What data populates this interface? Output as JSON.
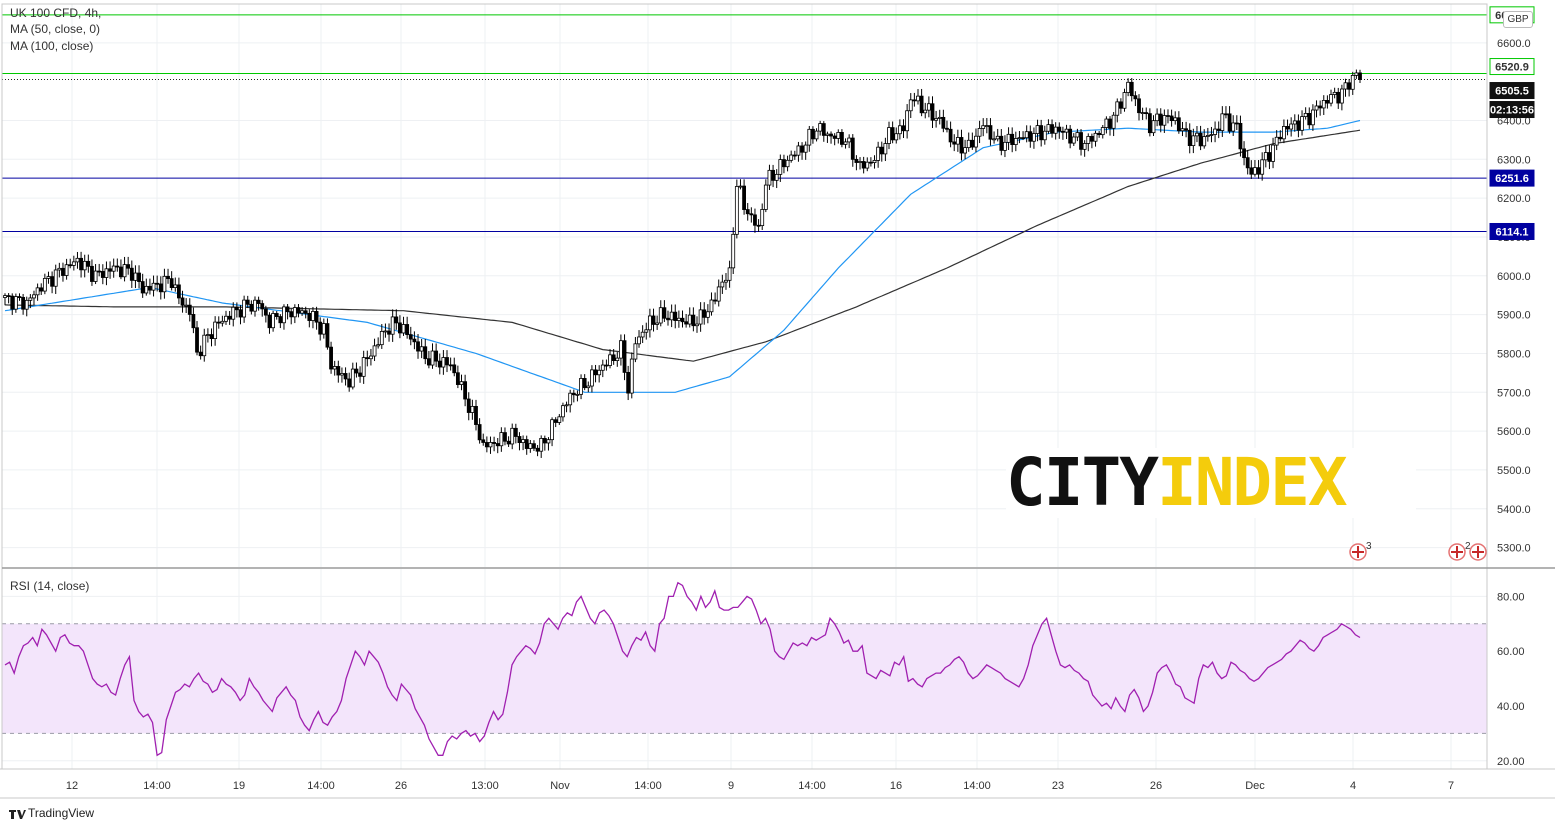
{
  "header": {
    "symbol": "UK 100 CFD, 4h,",
    "ma1_label": "MA (50, close, 0)",
    "ma2_label": "MA (100, close)",
    "rsi_label": "RSI (14, close)",
    "currency": "GBP"
  },
  "branding": {
    "tradingview": "TradingView",
    "logo_part1": "CITY",
    "logo_part2": "INDEX"
  },
  "price_tags": {
    "level_6672": "6672.1",
    "level_6520": "6520.9",
    "last_price": "6505.5",
    "countdown": "02:13:56",
    "level_6251": "6251.6",
    "level_6114": "6114.1"
  },
  "event_markers": [
    "3",
    "2"
  ],
  "colors": {
    "up_candle": "#ffffff",
    "down_candle": "#000000",
    "ma50": "#2196f3",
    "ma100": "#333333",
    "support_line": "#0000a0",
    "resistance_line": "#00c800",
    "rsi_line": "#a020b0",
    "rsi_band": "#f3e5fb",
    "logo_dark": "#111111",
    "logo_yellow": "#f4cc0c"
  },
  "chart_data": [
    {
      "type": "candlestick",
      "title": "UK 100 CFD, 4h",
      "ylim": [
        5250,
        6700
      ],
      "y_ticks": [
        "5300.0",
        "5400.0",
        "5500.0",
        "5600.0",
        "5700.0",
        "5800.0",
        "5900.0",
        "6000.0",
        "6100.0",
        "6200.0",
        "6300.0",
        "6400.0",
        "6600.0"
      ],
      "x_ticks": [
        "12",
        "14:00",
        "19",
        "14:00",
        "26",
        "13:00",
        "Nov",
        "14:00",
        "9",
        "14:00",
        "16",
        "14:00",
        "23",
        "26",
        "Dec",
        "4",
        "7"
      ],
      "horizontal_levels": [
        {
          "value": 6672.1,
          "color": "#00c800"
        },
        {
          "value": 6520.9,
          "color": "#00c800"
        },
        {
          "value": 6251.6,
          "color": "#0000a0"
        },
        {
          "value": 6114.1,
          "color": "#0000a0"
        }
      ],
      "last_price": 6505.5,
      "close_path": [
        [
          0,
          5940
        ],
        [
          6,
          5930
        ],
        [
          10,
          5975
        ],
        [
          15,
          6010
        ],
        [
          20,
          6040
        ],
        [
          25,
          6000
        ],
        [
          30,
          6020
        ],
        [
          35,
          6010
        ],
        [
          38,
          5965
        ],
        [
          42,
          5975
        ],
        [
          46,
          5990
        ],
        [
          48,
          5940
        ],
        [
          51,
          5910
        ],
        [
          53,
          5800
        ],
        [
          55,
          5830
        ],
        [
          58,
          5870
        ],
        [
          62,
          5900
        ],
        [
          66,
          5920
        ],
        [
          70,
          5930
        ],
        [
          73,
          5880
        ],
        [
          76,
          5900
        ],
        [
          80,
          5910
        ],
        [
          84,
          5900
        ],
        [
          88,
          5860
        ],
        [
          90,
          5770
        ],
        [
          93,
          5740
        ],
        [
          95,
          5730
        ],
        [
          98,
          5760
        ],
        [
          101,
          5800
        ],
        [
          105,
          5860
        ],
        [
          108,
          5880
        ],
        [
          112,
          5840
        ],
        [
          116,
          5790
        ],
        [
          120,
          5780
        ],
        [
          123,
          5770
        ],
        [
          126,
          5710
        ],
        [
          130,
          5620
        ],
        [
          132,
          5560
        ],
        [
          135,
          5570
        ],
        [
          138,
          5580
        ],
        [
          141,
          5590
        ],
        [
          144,
          5560
        ],
        [
          148,
          5560
        ],
        [
          151,
          5610
        ],
        [
          154,
          5660
        ],
        [
          157,
          5700
        ],
        [
          160,
          5720
        ],
        [
          164,
          5760
        ],
        [
          168,
          5790
        ],
        [
          170,
          5810
        ],
        [
          172,
          5710
        ],
        [
          174,
          5830
        ],
        [
          178,
          5880
        ],
        [
          182,
          5900
        ],
        [
          185,
          5890
        ],
        [
          189,
          5880
        ],
        [
          192,
          5890
        ],
        [
          196,
          5940
        ],
        [
          198,
          5990
        ],
        [
          200,
          6000
        ],
        [
          202,
          6240
        ],
        [
          204,
          6180
        ],
        [
          206,
          6150
        ],
        [
          208,
          6120
        ],
        [
          210,
          6240
        ],
        [
          213,
          6270
        ],
        [
          216,
          6300
        ],
        [
          220,
          6330
        ],
        [
          224,
          6380
        ],
        [
          228,
          6360
        ],
        [
          232,
          6350
        ],
        [
          236,
          6280
        ],
        [
          240,
          6300
        ],
        [
          244,
          6360
        ],
        [
          248,
          6380
        ],
        [
          250,
          6460
        ],
        [
          254,
          6430
        ],
        [
          258,
          6400
        ],
        [
          262,
          6340
        ],
        [
          266,
          6330
        ],
        [
          270,
          6390
        ],
        [
          274,
          6340
        ],
        [
          278,
          6350
        ],
        [
          282,
          6360
        ],
        [
          286,
          6370
        ],
        [
          290,
          6380
        ],
        [
          294,
          6360
        ],
        [
          298,
          6340
        ],
        [
          302,
          6370
        ],
        [
          306,
          6410
        ],
        [
          310,
          6490
        ],
        [
          313,
          6430
        ],
        [
          316,
          6390
        ],
        [
          320,
          6410
        ],
        [
          323,
          6400
        ],
        [
          326,
          6360
        ],
        [
          330,
          6350
        ],
        [
          334,
          6370
        ],
        [
          336,
          6410
        ],
        [
          340,
          6380
        ],
        [
          342,
          6300
        ],
        [
          344,
          6260
        ],
        [
          347,
          6290
        ],
        [
          350,
          6330
        ],
        [
          353,
          6380
        ],
        [
          356,
          6390
        ],
        [
          360,
          6410
        ],
        [
          363,
          6440
        ],
        [
          366,
          6460
        ],
        [
          369,
          6470
        ],
        [
          371,
          6500
        ],
        [
          373,
          6518
        ],
        [
          374,
          6506
        ]
      ],
      "ma50": [
        [
          0,
          5910
        ],
        [
          40,
          5970
        ],
        [
          60,
          5930
        ],
        [
          100,
          5880
        ],
        [
          130,
          5800
        ],
        [
          160,
          5700
        ],
        [
          185,
          5700
        ],
        [
          200,
          5740
        ],
        [
          215,
          5860
        ],
        [
          230,
          6020
        ],
        [
          250,
          6210
        ],
        [
          270,
          6330
        ],
        [
          290,
          6370
        ],
        [
          310,
          6380
        ],
        [
          330,
          6370
        ],
        [
          350,
          6370
        ],
        [
          365,
          6380
        ],
        [
          374,
          6400
        ]
      ],
      "ma100": [
        [
          0,
          5925
        ],
        [
          30,
          5920
        ],
        [
          60,
          5920
        ],
        [
          110,
          5910
        ],
        [
          140,
          5880
        ],
        [
          165,
          5810
        ],
        [
          190,
          5780
        ],
        [
          210,
          5830
        ],
        [
          235,
          5920
        ],
        [
          260,
          6020
        ],
        [
          285,
          6130
        ],
        [
          310,
          6230
        ],
        [
          330,
          6290
        ],
        [
          350,
          6340
        ],
        [
          374,
          6375
        ]
      ]
    },
    {
      "type": "line",
      "title": "RSI (14, close)",
      "ylim": [
        17,
        90
      ],
      "y_ticks": [
        "20.00",
        "40.00",
        "60.00",
        "80.00"
      ],
      "band": [
        30,
        70
      ],
      "values": [
        55,
        56,
        52,
        58,
        62,
        63,
        65,
        62,
        68,
        66,
        63,
        60,
        65,
        66,
        63,
        62,
        62,
        60,
        55,
        50,
        48,
        47,
        48,
        45,
        44,
        50,
        55,
        58,
        42,
        38,
        36,
        37,
        34,
        22,
        23,
        35,
        40,
        45,
        46,
        48,
        47,
        50,
        52,
        49,
        48,
        45,
        46,
        50,
        48,
        47,
        45,
        42,
        44,
        50,
        47,
        45,
        42,
        40,
        38,
        43,
        45,
        47,
        44,
        42,
        36,
        33,
        31,
        35,
        38,
        34,
        33,
        36,
        38,
        42,
        50,
        55,
        60,
        58,
        55,
        60,
        58,
        56,
        52,
        47,
        44,
        42,
        48,
        46,
        44,
        39,
        36,
        33,
        28,
        25,
        22,
        22,
        27,
        29,
        28,
        30,
        31,
        29,
        30,
        27,
        29,
        34,
        38,
        35,
        37,
        45,
        55,
        58,
        60,
        62,
        61,
        59,
        63,
        70,
        72,
        70,
        68,
        72,
        74,
        73,
        78,
        80,
        76,
        72,
        70,
        74,
        75,
        73,
        70,
        65,
        60,
        58,
        62,
        65,
        64,
        67,
        62,
        60,
        70,
        72,
        80,
        80,
        85,
        84,
        80,
        78,
        75,
        80,
        76,
        78,
        82,
        76,
        75,
        75,
        76,
        76,
        78,
        80,
        79,
        75,
        70,
        72,
        68,
        60,
        58,
        57,
        60,
        63,
        62,
        63,
        62,
        65,
        64,
        65,
        66,
        72,
        70,
        67,
        63,
        64,
        60,
        60,
        62,
        52,
        51,
        50,
        53,
        52,
        51,
        56,
        55,
        58,
        49,
        50,
        48,
        47,
        50,
        51,
        52,
        52,
        54,
        55,
        57,
        58,
        56,
        52,
        50,
        51,
        53,
        55,
        54,
        53,
        52,
        50,
        49,
        48,
        47,
        50,
        55,
        62,
        66,
        70,
        72,
        66,
        60,
        55,
        54,
        55,
        53,
        52,
        50,
        49,
        44,
        42,
        40,
        41,
        39,
        43,
        40,
        38,
        44,
        46,
        43,
        38,
        40,
        45,
        52,
        54,
        55,
        52,
        48,
        47,
        43,
        42,
        41,
        50,
        55,
        54,
        56,
        52,
        50,
        51,
        56,
        55,
        53,
        52,
        50,
        49,
        50,
        52,
        54,
        55,
        56,
        57,
        59,
        60,
        62,
        64,
        63,
        61,
        60,
        62,
        65,
        66,
        67,
        68,
        70,
        69,
        68,
        66,
        65
      ]
    }
  ]
}
